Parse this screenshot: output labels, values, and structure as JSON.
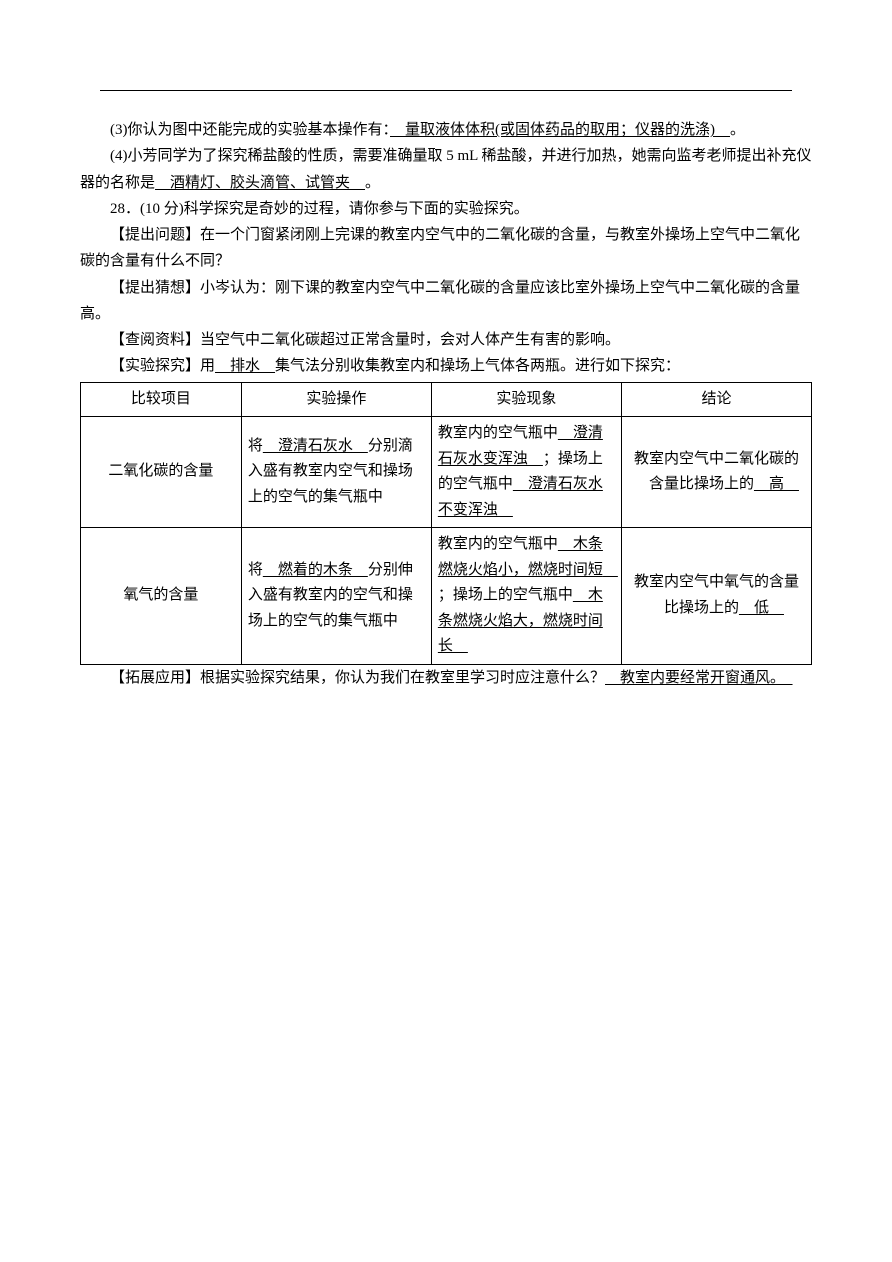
{
  "p1_a": "(3)你认为图中还能完成的实验基本操作有：",
  "p1_u": "　量取液体体积(或固体药品的取用；仪器的洗涤)　",
  "p1_b": "。",
  "p2_a": "(4)小芳同学为了探究稀盐酸的性质，需要准确量取 5 mL 稀盐酸，并进行加热，她需向监考老师提出补充仪器的名称是",
  "p2_u": "　酒精灯、胶头滴管、试管夹　",
  "p2_b": "。",
  "p3": "28．(10 分)科学探究是奇妙的过程，请你参与下面的实验探究。",
  "p4": "【提出问题】在一个门窗紧闭刚上完课的教室内空气中的二氧化碳的含量，与教室外操场上空气中二氧化碳的含量有什么不同？",
  "p5": "【提出猜想】小岑认为：刚下课的教室内空气中二氧化碳的含量应该比室外操场上空气中二氧化碳的含量高。",
  "p6": "【查阅资料】当空气中二氧化碳超过正常含量时，会对人体产生有害的影响。",
  "p7_a": "【实验探究】用",
  "p7_u": "　排水　",
  "p7_b": "集气法分别收集教室内和操场上气体各两瓶。进行如下探究：",
  "th1": "比较项目",
  "th2": "实验操作",
  "th3": "实验现象",
  "th4": "结论",
  "r1c1": "二氧化碳的含量",
  "r1c2_a": "将",
  "r1c2_u": "　澄清石灰水　",
  "r1c2_b": "分别滴入盛有教室内空气和操场上的空气的集气瓶中",
  "r1c3_a": "教室内的空气瓶中",
  "r1c3_u1": "　澄清石灰水变浑浊　",
  "r1c3_b": "；操场上的空气瓶中",
  "r1c3_u2": "　澄清石灰水不变浑浊　",
  "r1c4_a": "教室内空气中二氧化碳的含量比操场上的",
  "r1c4_u": "　高　",
  "r2c1": "氧气的含量",
  "r2c2_a": "将",
  "r2c2_u": "　燃着的木条　",
  "r2c2_b": "分别伸入盛有教室内的空气和操场上的空气的集气瓶中",
  "r2c3_a": "教室内的空气瓶中",
  "r2c3_u1": "　木条燃烧火焰小，燃烧时间短　",
  "r2c3_b": "；操场上的空气瓶中",
  "r2c3_u2": "　木条燃烧火焰大，燃烧时间长　",
  "r2c4_a": "教室内空气中氧气的含量比操场上的",
  "r2c4_u": "　低　",
  "p8_a": "【拓展应用】根据实验探究结果，你认为我们在教室里学习时应注意什么？",
  "p8_u": "　教室内要经常开窗通风。　"
}
